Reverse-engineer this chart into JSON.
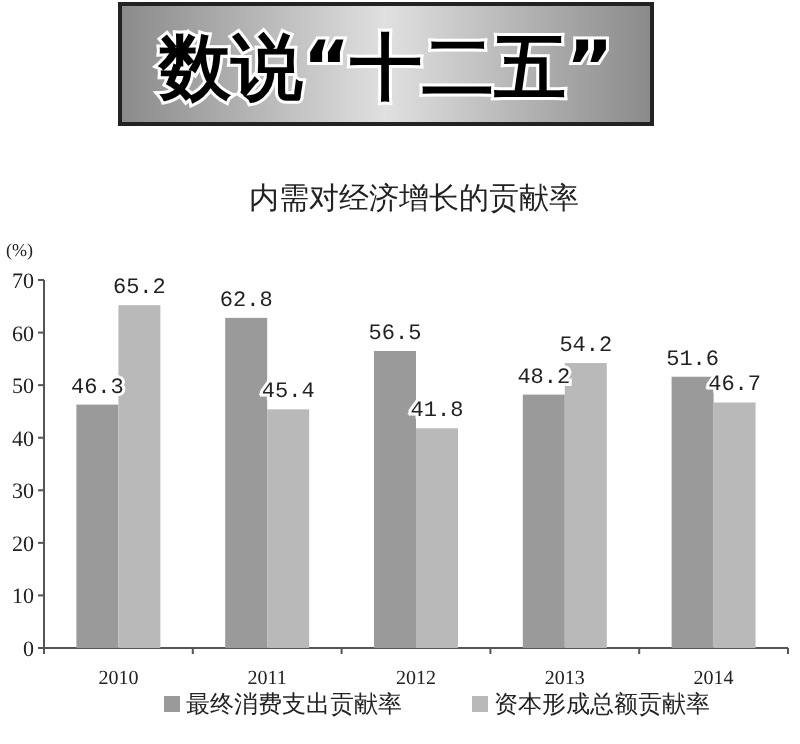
{
  "chart_data": {
    "type": "bar",
    "title": "数说“十二五”",
    "subtitle": "内需对经济增长的贡献率",
    "ylabel": "(%)",
    "categories": [
      "2010",
      "2011",
      "2012",
      "2013",
      "2014"
    ],
    "series": [
      {
        "name": "最终消费支出贡献率",
        "color": "#9a9a9a",
        "values": [
          46.3,
          62.8,
          56.5,
          48.2,
          51.6
        ]
      },
      {
        "name": "资本形成总额贡献率",
        "color": "#b9b9b9",
        "values": [
          65.2,
          45.4,
          41.8,
          54.2,
          46.7
        ]
      }
    ],
    "ylim": [
      0,
      70
    ],
    "yticks": [
      0,
      10,
      20,
      30,
      40,
      50,
      60,
      70
    ],
    "data_labels": true,
    "grid": false,
    "legend": "bottom"
  }
}
